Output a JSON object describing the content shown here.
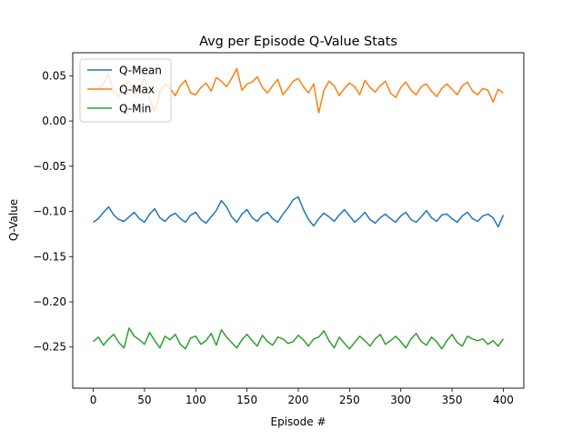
{
  "chart_data": {
    "type": "line",
    "title": "Avg per Episode Q-Value Stats",
    "xlabel": "Episode #",
    "ylabel": "Q-Value",
    "xlim": [
      -20,
      420
    ],
    "ylim": [
      -0.2955,
      0.0755
    ],
    "x_ticks": [
      {
        "value": 0,
        "label": "0"
      },
      {
        "value": 50,
        "label": "50"
      },
      {
        "value": 100,
        "label": "100"
      },
      {
        "value": 150,
        "label": "150"
      },
      {
        "value": 200,
        "label": "200"
      },
      {
        "value": 250,
        "label": "250"
      },
      {
        "value": 300,
        "label": "300"
      },
      {
        "value": 350,
        "label": "350"
      },
      {
        "value": 400,
        "label": "400"
      }
    ],
    "y_ticks": [
      {
        "value": 0.05,
        "label": "0.05"
      },
      {
        "value": 0.0,
        "label": "0.00"
      },
      {
        "value": -0.05,
        "label": "−0.05"
      },
      {
        "value": -0.1,
        "label": "−0.10"
      },
      {
        "value": -0.15,
        "label": "−0.15"
      },
      {
        "value": -0.2,
        "label": "−0.20"
      },
      {
        "value": -0.25,
        "label": "−0.25"
      }
    ],
    "grid": false,
    "legend": "upper-left",
    "series": [
      {
        "name": "Q-Mean",
        "color": "#1f77b4",
        "x_start": 0,
        "x_step": 5,
        "values": [
          -0.112,
          -0.108,
          -0.101,
          -0.095,
          -0.104,
          -0.109,
          -0.111,
          -0.106,
          -0.101,
          -0.108,
          -0.112,
          -0.103,
          -0.097,
          -0.107,
          -0.111,
          -0.105,
          -0.102,
          -0.108,
          -0.112,
          -0.104,
          -0.101,
          -0.109,
          -0.113,
          -0.106,
          -0.099,
          -0.088,
          -0.095,
          -0.106,
          -0.112,
          -0.103,
          -0.098,
          -0.107,
          -0.111,
          -0.104,
          -0.101,
          -0.108,
          -0.112,
          -0.103,
          -0.096,
          -0.087,
          -0.084,
          -0.098,
          -0.109,
          -0.116,
          -0.108,
          -0.102,
          -0.106,
          -0.111,
          -0.104,
          -0.098,
          -0.105,
          -0.112,
          -0.107,
          -0.101,
          -0.109,
          -0.113,
          -0.107,
          -0.103,
          -0.108,
          -0.112,
          -0.105,
          -0.101,
          -0.109,
          -0.112,
          -0.106,
          -0.099,
          -0.107,
          -0.111,
          -0.104,
          -0.103,
          -0.108,
          -0.112,
          -0.105,
          -0.101,
          -0.108,
          -0.111,
          -0.105,
          -0.103,
          -0.107,
          -0.117,
          -0.104
        ]
      },
      {
        "name": "Q-Max",
        "color": "#ff7f0e",
        "x_start": 0,
        "x_step": 5,
        "values": [
          0.033,
          0.036,
          0.041,
          0.052,
          0.031,
          0.027,
          0.039,
          0.044,
          0.029,
          0.035,
          0.048,
          0.024,
          0.011,
          0.032,
          0.041,
          0.036,
          0.028,
          0.039,
          0.045,
          0.031,
          0.029,
          0.037,
          0.042,
          0.033,
          0.048,
          0.044,
          0.038,
          0.047,
          0.058,
          0.034,
          0.041,
          0.043,
          0.049,
          0.037,
          0.031,
          0.039,
          0.046,
          0.029,
          0.036,
          0.044,
          0.047,
          0.038,
          0.031,
          0.041,
          0.009,
          0.034,
          0.044,
          0.039,
          0.028,
          0.036,
          0.042,
          0.038,
          0.029,
          0.045,
          0.037,
          0.032,
          0.039,
          0.044,
          0.031,
          0.026,
          0.037,
          0.043,
          0.034,
          0.029,
          0.038,
          0.041,
          0.033,
          0.027,
          0.036,
          0.041,
          0.035,
          0.029,
          0.039,
          0.043,
          0.033,
          0.029,
          0.036,
          0.034,
          0.021,
          0.035,
          0.031
        ]
      },
      {
        "name": "Q-Min",
        "color": "#2ca02c",
        "x_start": 0,
        "x_step": 5,
        "values": [
          -0.244,
          -0.239,
          -0.248,
          -0.241,
          -0.236,
          -0.245,
          -0.251,
          -0.229,
          -0.238,
          -0.242,
          -0.247,
          -0.234,
          -0.243,
          -0.251,
          -0.238,
          -0.242,
          -0.236,
          -0.247,
          -0.252,
          -0.24,
          -0.238,
          -0.247,
          -0.243,
          -0.235,
          -0.248,
          -0.231,
          -0.239,
          -0.245,
          -0.251,
          -0.242,
          -0.236,
          -0.243,
          -0.249,
          -0.237,
          -0.244,
          -0.248,
          -0.239,
          -0.241,
          -0.246,
          -0.244,
          -0.237,
          -0.242,
          -0.249,
          -0.241,
          -0.239,
          -0.232,
          -0.243,
          -0.251,
          -0.239,
          -0.246,
          -0.252,
          -0.245,
          -0.238,
          -0.243,
          -0.249,
          -0.241,
          -0.236,
          -0.247,
          -0.243,
          -0.238,
          -0.244,
          -0.251,
          -0.241,
          -0.235,
          -0.244,
          -0.248,
          -0.239,
          -0.244,
          -0.252,
          -0.243,
          -0.236,
          -0.245,
          -0.249,
          -0.238,
          -0.241,
          -0.243,
          -0.241,
          -0.247,
          -0.243,
          -0.249,
          -0.241
        ]
      }
    ]
  }
}
